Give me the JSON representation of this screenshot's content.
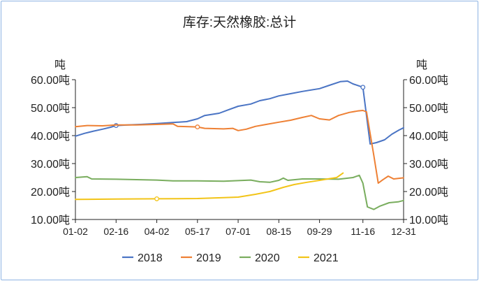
{
  "chart_data": {
    "type": "line",
    "title": "库存:天然橡胶:总计",
    "y_unit_label": "吨",
    "y_unit_label_right": "吨",
    "ylim": [
      10,
      60
    ],
    "y_ticks": [
      "10.00吨",
      "20.00吨",
      "30.00吨",
      "40.00吨",
      "50.00吨",
      "60.00吨"
    ],
    "x_ticks": [
      "01-02",
      "02-16",
      "04-02",
      "05-17",
      "07-01",
      "08-15",
      "09-29",
      "11-16",
      "12-31"
    ],
    "grid": false,
    "legend_position": "bottom",
    "series": [
      {
        "name": "2018",
        "color": "#4a74c4",
        "points": [
          [
            "01-02",
            39.8
          ],
          [
            "01-12",
            40.8
          ],
          [
            "01-22",
            41.6
          ],
          [
            "02-01",
            42.3
          ],
          [
            "02-10",
            43.0
          ],
          [
            "02-16",
            43.6
          ],
          [
            "03-01",
            43.8
          ],
          [
            "03-15",
            44.0
          ],
          [
            "04-02",
            44.3
          ],
          [
            "04-20",
            44.7
          ],
          [
            "05-05",
            45.0
          ],
          [
            "05-17",
            46.0
          ],
          [
            "05-25",
            47.2
          ],
          [
            "06-10",
            48.0
          ],
          [
            "06-20",
            49.2
          ],
          [
            "07-01",
            50.5
          ],
          [
            "07-15",
            51.3
          ],
          [
            "07-25",
            52.5
          ],
          [
            "08-05",
            53.2
          ],
          [
            "08-15",
            54.2
          ],
          [
            "08-28",
            55.0
          ],
          [
            "09-10",
            55.8
          ],
          [
            "09-29",
            56.8
          ],
          [
            "10-10",
            58.0
          ],
          [
            "10-22",
            59.3
          ],
          [
            "10-30",
            59.5
          ],
          [
            "11-05",
            58.5
          ],
          [
            "11-16",
            57.3
          ],
          [
            "11-24",
            37.0
          ],
          [
            "12-01",
            37.5
          ],
          [
            "12-10",
            38.5
          ],
          [
            "12-18",
            40.5
          ],
          [
            "12-26",
            42.0
          ],
          [
            "12-31",
            42.8
          ]
        ],
        "markers": [
          [
            "02-16",
            43.6
          ],
          [
            "11-16",
            57.3
          ]
        ]
      },
      {
        "name": "2019",
        "color": "#ee8034",
        "points": [
          [
            "01-02",
            43.2
          ],
          [
            "01-15",
            43.6
          ],
          [
            "02-01",
            43.5
          ],
          [
            "02-16",
            43.8
          ],
          [
            "03-10",
            43.8
          ],
          [
            "04-02",
            44.0
          ],
          [
            "04-20",
            44.2
          ],
          [
            "04-25",
            43.3
          ],
          [
            "05-17",
            43.1
          ],
          [
            "05-25",
            42.6
          ],
          [
            "06-15",
            42.4
          ],
          [
            "06-25",
            42.6
          ],
          [
            "07-01",
            41.8
          ],
          [
            "07-10",
            42.3
          ],
          [
            "07-20",
            43.3
          ],
          [
            "08-01",
            44.0
          ],
          [
            "08-15",
            44.8
          ],
          [
            "08-28",
            45.5
          ],
          [
            "09-10",
            46.5
          ],
          [
            "09-20",
            47.2
          ],
          [
            "09-29",
            46.0
          ],
          [
            "10-10",
            45.6
          ],
          [
            "10-20",
            47.2
          ],
          [
            "11-01",
            48.3
          ],
          [
            "11-10",
            48.8
          ],
          [
            "11-16",
            49.0
          ],
          [
            "11-20",
            48.5
          ],
          [
            "11-28",
            33.0
          ],
          [
            "12-03",
            23.0
          ],
          [
            "12-08",
            24.2
          ],
          [
            "12-14",
            25.5
          ],
          [
            "12-20",
            24.5
          ],
          [
            "12-31",
            24.9
          ]
        ],
        "markers": [
          [
            "05-17",
            43.1
          ]
        ]
      },
      {
        "name": "2020",
        "color": "#79ad5e",
        "points": [
          [
            "01-02",
            25.0
          ],
          [
            "01-15",
            25.3
          ],
          [
            "01-20",
            24.5
          ],
          [
            "02-16",
            24.4
          ],
          [
            "04-02",
            24.1
          ],
          [
            "04-20",
            23.8
          ],
          [
            "05-17",
            23.8
          ],
          [
            "06-15",
            23.7
          ],
          [
            "07-01",
            23.9
          ],
          [
            "07-15",
            24.1
          ],
          [
            "07-25",
            23.5
          ],
          [
            "08-05",
            23.3
          ],
          [
            "08-15",
            24.0
          ],
          [
            "08-20",
            24.8
          ],
          [
            "08-25",
            24.0
          ],
          [
            "09-10",
            24.5
          ],
          [
            "09-29",
            24.5
          ],
          [
            "10-20",
            24.4
          ],
          [
            "11-05",
            25.0
          ],
          [
            "11-12",
            25.8
          ],
          [
            "11-16",
            23.0
          ],
          [
            "11-21",
            14.5
          ],
          [
            "11-28",
            13.6
          ],
          [
            "12-05",
            14.8
          ],
          [
            "12-15",
            16.0
          ],
          [
            "12-25",
            16.3
          ],
          [
            "12-31",
            16.8
          ]
        ],
        "markers": []
      },
      {
        "name": "2021",
        "color": "#f2c418",
        "points": [
          [
            "01-02",
            17.2
          ],
          [
            "02-16",
            17.3
          ],
          [
            "04-02",
            17.4
          ],
          [
            "05-17",
            17.5
          ],
          [
            "06-15",
            17.8
          ],
          [
            "07-01",
            18.0
          ],
          [
            "07-20",
            19.0
          ],
          [
            "08-05",
            20.0
          ],
          [
            "08-20",
            21.5
          ],
          [
            "09-01",
            22.5
          ],
          [
            "09-15",
            23.3
          ],
          [
            "09-29",
            24.0
          ],
          [
            "10-10",
            24.6
          ],
          [
            "10-18",
            25.0
          ],
          [
            "10-25",
            26.6
          ]
        ],
        "markers": [
          [
            "04-02",
            17.4
          ]
        ]
      }
    ]
  }
}
